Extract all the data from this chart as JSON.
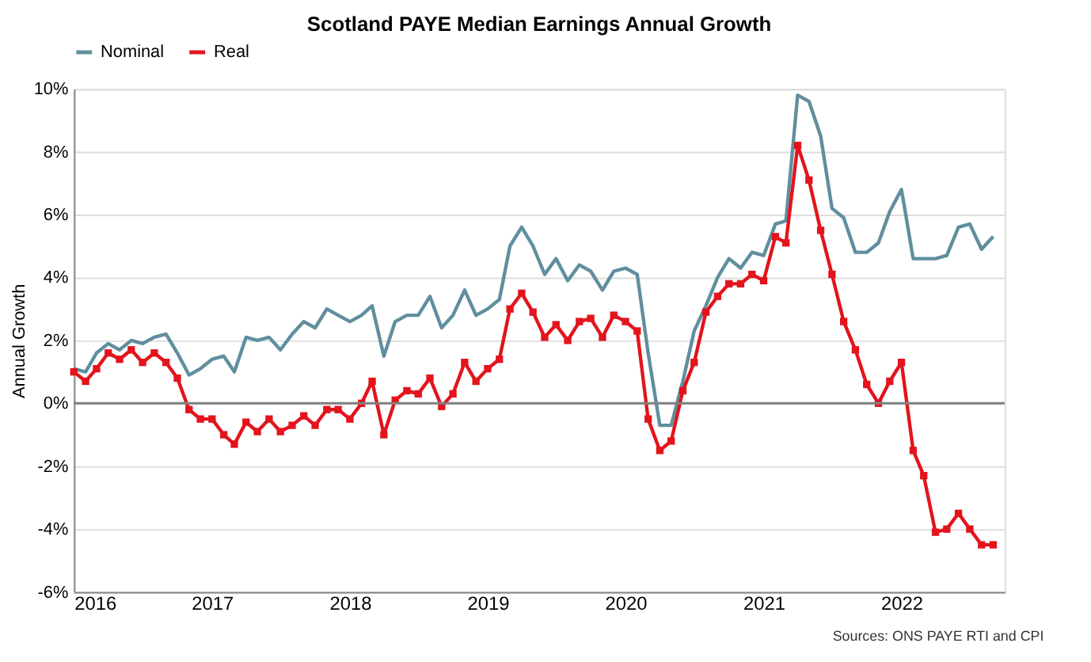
{
  "chart_data": {
    "type": "line",
    "title": "Scotland PAYE Median Earnings Annual Growth",
    "ylabel": "Annual Growth",
    "x": [
      "2016-01",
      "2016-02",
      "2016-03",
      "2016-04",
      "2016-05",
      "2016-06",
      "2016-07",
      "2016-08",
      "2016-09",
      "2016-10",
      "2016-11",
      "2016-12",
      "2017-01",
      "2017-02",
      "2017-03",
      "2017-04",
      "2017-05",
      "2017-06",
      "2017-07",
      "2017-08",
      "2017-09",
      "2017-10",
      "2017-11",
      "2017-12",
      "2018-01",
      "2018-02",
      "2018-03",
      "2018-04",
      "2018-05",
      "2018-06",
      "2018-07",
      "2018-08",
      "2018-09",
      "2018-10",
      "2018-11",
      "2018-12",
      "2019-01",
      "2019-02",
      "2019-03",
      "2019-04",
      "2019-05",
      "2019-06",
      "2019-07",
      "2019-08",
      "2019-09",
      "2019-10",
      "2019-11",
      "2019-12",
      "2020-01",
      "2020-02",
      "2020-03",
      "2020-04",
      "2020-05",
      "2020-06",
      "2020-07",
      "2020-08",
      "2020-09",
      "2020-10",
      "2020-11",
      "2020-12",
      "2021-01",
      "2021-02",
      "2021-03",
      "2021-04",
      "2021-05",
      "2021-06",
      "2021-07",
      "2021-08",
      "2021-09",
      "2021-10",
      "2021-11",
      "2021-12",
      "2022-01",
      "2022-02",
      "2022-03",
      "2022-04",
      "2022-05",
      "2022-06",
      "2022-07",
      "2022-08",
      "2022-09"
    ],
    "series": [
      {
        "name": "Nominal",
        "color": "#5f8f9e",
        "marker": "none",
        "values": [
          1.1,
          1.0,
          1.6,
          1.9,
          1.7,
          2.0,
          1.9,
          2.1,
          2.2,
          1.6,
          0.9,
          1.1,
          1.4,
          1.5,
          1.0,
          2.1,
          2.0,
          2.1,
          1.7,
          2.2,
          2.6,
          2.4,
          3.0,
          2.8,
          2.6,
          2.8,
          3.1,
          1.5,
          2.6,
          2.8,
          2.8,
          3.4,
          2.4,
          2.8,
          3.6,
          2.8,
          3.0,
          3.3,
          5.0,
          5.6,
          5.0,
          4.1,
          4.6,
          3.9,
          4.4,
          4.2,
          3.6,
          4.2,
          4.3,
          4.1,
          1.6,
          -0.7,
          -0.7,
          0.7,
          2.3,
          3.1,
          4.0,
          4.6,
          4.3,
          4.8,
          4.7,
          5.7,
          5.8,
          9.8,
          9.6,
          8.5,
          6.2,
          5.9,
          4.8,
          4.8,
          5.1,
          6.1,
          6.8,
          4.6,
          4.6,
          4.6,
          4.7,
          5.6,
          5.7,
          4.9,
          5.3
        ]
      },
      {
        "name": "Real",
        "color": "#e3141c",
        "marker": "square",
        "values": [
          1.0,
          0.7,
          1.1,
          1.6,
          1.4,
          1.7,
          1.3,
          1.6,
          1.3,
          0.8,
          -0.2,
          -0.5,
          -0.5,
          -1.0,
          -1.3,
          -0.6,
          -0.9,
          -0.5,
          -0.9,
          -0.7,
          -0.4,
          -0.7,
          -0.2,
          -0.2,
          -0.5,
          0.0,
          0.7,
          -1.0,
          0.1,
          0.4,
          0.3,
          0.8,
          -0.1,
          0.3,
          1.3,
          0.7,
          1.1,
          1.4,
          3.0,
          3.5,
          2.9,
          2.1,
          2.5,
          2.0,
          2.6,
          2.7,
          2.1,
          2.8,
          2.6,
          2.3,
          -0.5,
          -1.5,
          -1.2,
          0.4,
          1.3,
          2.9,
          3.4,
          3.8,
          3.8,
          4.1,
          3.9,
          5.3,
          5.1,
          8.2,
          7.1,
          5.5,
          4.1,
          2.6,
          1.7,
          0.6,
          0.0,
          0.7,
          1.3,
          -1.5,
          -2.3,
          -4.1,
          -4.0,
          -3.5,
          -4.0,
          -4.5,
          -4.5
        ]
      }
    ],
    "xlim": [
      "2016-01",
      "2022-10"
    ],
    "xticks": [
      "2016",
      "2017",
      "2018",
      "2019",
      "2020",
      "2021",
      "2022"
    ],
    "ylim": [
      -6,
      10
    ],
    "yticks": [
      {
        "value": -6,
        "label": "-6%"
      },
      {
        "value": -4,
        "label": "-4%"
      },
      {
        "value": -2,
        "label": "-2%"
      },
      {
        "value": 0,
        "label": "0%"
      },
      {
        "value": 2,
        "label": "2%"
      },
      {
        "value": 4,
        "label": "4%"
      },
      {
        "value": 6,
        "label": "6%"
      },
      {
        "value": 8,
        "label": "8%"
      },
      {
        "value": 10,
        "label": "10%"
      }
    ],
    "ref_lines": [
      {
        "axis": "y",
        "value": 0,
        "color": "#808080"
      }
    ],
    "grid": "y",
    "legend": "top",
    "line_style": "solid",
    "annotations": [
      "Sources: ONS PAYE RTI and CPI"
    ]
  }
}
